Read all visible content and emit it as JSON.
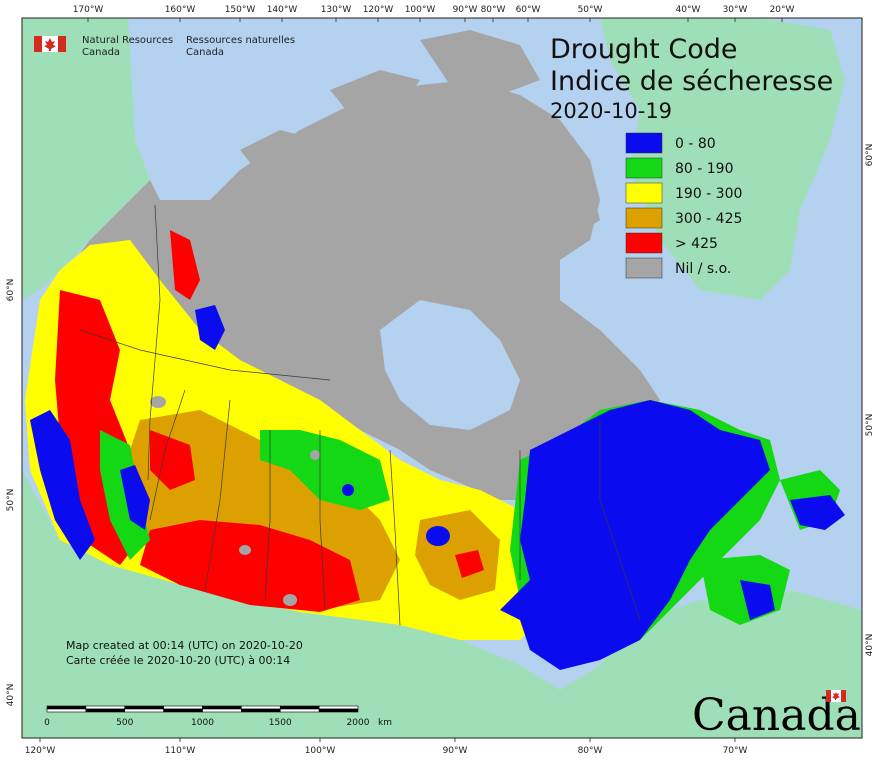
{
  "map": {
    "title_en": "Drought Code",
    "title_fr": "Indice de sécheresse",
    "date": "2020-10-19",
    "agency_en_line1": "Natural Resources",
    "agency_en_line2": "Canada",
    "agency_fr_line1": "Ressources naturelles",
    "agency_fr_line2": "Canada",
    "created_en": "Map created at 00:14 (UTC) on 2020-10-20",
    "created_fr": "Carte créée le 2020-10-20 (UTC) à 00:14",
    "wordmark": "Canada",
    "colors": {
      "ocean": "#b4d2f0",
      "land_outside": "#9fdfb7",
      "nil": "#a5a5a5",
      "class_1": "#0b0bf0",
      "class_2": "#13d813",
      "class_3": "#ffff00",
      "class_4": "#dca000",
      "class_5": "#ff0000"
    }
  },
  "legend": [
    {
      "label": "0 - 80",
      "color": "#0b0bf0"
    },
    {
      "label": "80 - 190",
      "color": "#13d813"
    },
    {
      "label": "190 - 300",
      "color": "#ffff00"
    },
    {
      "label": "300 - 425",
      "color": "#dca000"
    },
    {
      "label": "> 425",
      "color": "#ff0000"
    },
    {
      "label": "Nil / s.o.",
      "color": "#a5a5a5"
    }
  ],
  "top_ticks": [
    "170°W",
    "160°W",
    "150°W",
    "140°W",
    "130°W",
    "120°W",
    "100°W",
    "90°W",
    "80°W",
    "60°W",
    "50°W",
    "40°W",
    "30°W",
    "20°W"
  ],
  "bottom_ticks": [
    "120°W",
    "110°W",
    "100°W",
    "90°W",
    "80°W",
    "70°W"
  ],
  "left_ticks": [
    "60°N",
    "50°N",
    "40°N"
  ],
  "right_ticks": [
    "60°N",
    "50°N",
    "40°N"
  ],
  "scalebar": {
    "labels": [
      "0",
      "500",
      "1000",
      "1500",
      "2000"
    ],
    "unit": "km"
  }
}
